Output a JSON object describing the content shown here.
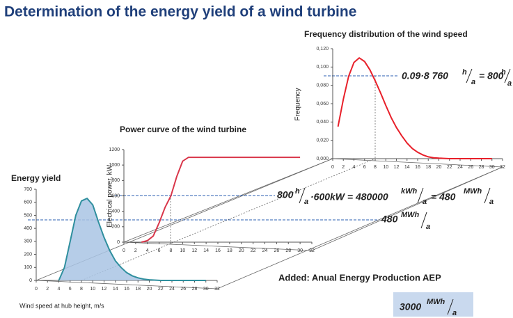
{
  "title": "Determination of the energy yield of a wind turbine",
  "chart_data": [
    {
      "type": "line",
      "title": "Frequency distribution of the wind speed",
      "ylabel": "Frequency",
      "color": "#e8202a",
      "x": [
        1,
        2,
        3,
        4,
        5,
        6,
        7,
        8,
        9,
        10,
        11,
        12,
        13,
        14,
        15,
        16,
        17,
        18,
        19,
        20,
        22,
        24,
        26,
        28,
        30
      ],
      "values": [
        0.035,
        0.065,
        0.09,
        0.105,
        0.11,
        0.106,
        0.097,
        0.085,
        0.072,
        0.058,
        0.045,
        0.034,
        0.025,
        0.017,
        0.011,
        0.007,
        0.004,
        0.002,
        0.001,
        0.0005,
        0,
        0,
        0,
        0,
        0
      ],
      "xlim": [
        0,
        32
      ],
      "xticks": [
        0,
        2,
        4,
        6,
        8,
        10,
        12,
        14,
        16,
        18,
        20,
        22,
        24,
        26,
        28,
        30,
        32
      ],
      "ylim": [
        0,
        0.12
      ],
      "yticks": [
        {
          "value": 0,
          "label": "0,000"
        },
        {
          "value": 0.02,
          "label": "0,020"
        },
        {
          "value": 0.04,
          "label": "0,040"
        },
        {
          "value": 0.06,
          "label": "0,060"
        },
        {
          "value": 0.08,
          "label": "0,080"
        },
        {
          "value": 0.1,
          "label": "0,100"
        },
        {
          "value": 0.12,
          "label": "0,120"
        }
      ]
    },
    {
      "type": "line",
      "title": "Power curve of the wind turbine",
      "ylabel": "Electrical power, kW",
      "color": "#d9364a",
      "x": [
        3,
        4,
        5,
        6,
        7,
        8,
        9,
        10,
        11,
        12,
        14,
        16,
        18,
        20,
        22,
        24,
        26,
        28,
        30
      ],
      "values": [
        0,
        20,
        80,
        250,
        450,
        600,
        850,
        1050,
        1100,
        1100,
        1100,
        1100,
        1100,
        1100,
        1100,
        1100,
        1100,
        1100,
        1100
      ],
      "xlim": [
        0,
        32
      ],
      "xticks": [
        0,
        2,
        4,
        6,
        8,
        10,
        12,
        14,
        16,
        18,
        20,
        22,
        24,
        26,
        28,
        30,
        32
      ],
      "ylim": [
        0,
        1200
      ],
      "yticks": [
        0,
        200,
        400,
        600,
        800,
        1000,
        1200
      ]
    },
    {
      "type": "area",
      "title": "Energy yield",
      "xlabel": "Wind speed at hub height, m/s",
      "color": "#2f8f9e",
      "x": [
        4,
        5,
        6,
        7,
        8,
        9,
        10,
        11,
        12,
        13,
        14,
        15,
        16,
        17,
        18,
        19,
        20,
        22,
        24,
        26,
        28,
        30
      ],
      "values": [
        0,
        100,
        300,
        500,
        610,
        630,
        580,
        450,
        330,
        230,
        150,
        100,
        60,
        35,
        20,
        10,
        5,
        0,
        0,
        0,
        0,
        0
      ],
      "xlim": [
        0,
        32
      ],
      "xticks": [
        0,
        2,
        4,
        6,
        8,
        10,
        12,
        14,
        16,
        18,
        20,
        22,
        24,
        26,
        28,
        30,
        32
      ],
      "ylim": [
        0,
        700
      ],
      "yticks": [
        0,
        100,
        200,
        300,
        400,
        500,
        600,
        700
      ]
    }
  ],
  "formula1": [
    "0.09·8 760",
    "h",
    "a",
    "= 800",
    "h",
    "a"
  ],
  "formula2": [
    "800",
    "h",
    "a",
    "·600kW = 480000",
    "kWh",
    "a",
    "= 480",
    "MWh",
    "a"
  ],
  "formula3": [
    "480",
    "MWh",
    "a"
  ],
  "aep_label": "Added: Anual Energy Production AEP",
  "aep": [
    "3000",
    "MWh",
    "a"
  ]
}
